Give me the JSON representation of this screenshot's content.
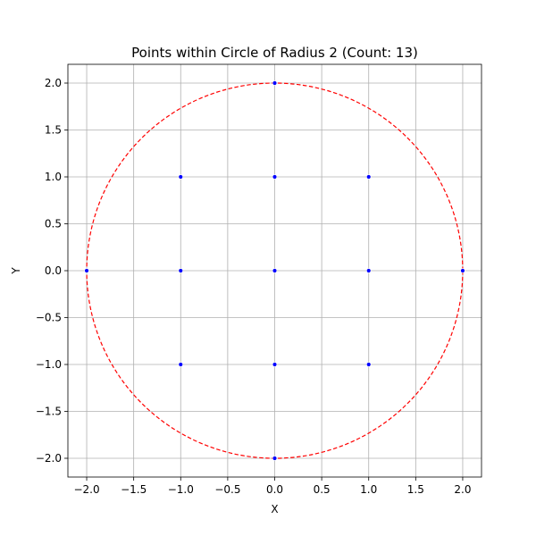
{
  "chart_data": {
    "type": "scatter",
    "title": "Points within Circle of Radius 2 (Count: 13)",
    "xlabel": "X",
    "ylabel": "Y",
    "xlim": [
      -2.2,
      2.2
    ],
    "ylim": [
      -2.2,
      2.2
    ],
    "xticks": [
      -2.0,
      -1.5,
      -1.0,
      -0.5,
      0.0,
      0.5,
      1.0,
      1.5,
      2.0
    ],
    "yticks": [
      -2.0,
      -1.5,
      -1.0,
      -0.5,
      0.0,
      0.5,
      1.0,
      1.5,
      2.0
    ],
    "xtick_labels": [
      "−2.0",
      "−1.5",
      "−1.0",
      "−0.5",
      "0.0",
      "0.5",
      "1.0",
      "1.5",
      "2.0"
    ],
    "ytick_labels": [
      "−2.0",
      "−1.5",
      "−1.0",
      "−0.5",
      "0.0",
      "0.5",
      "1.0",
      "1.5",
      "2.0"
    ],
    "grid": true,
    "points": [
      {
        "x": -2,
        "y": 0
      },
      {
        "x": -1,
        "y": -1
      },
      {
        "x": -1,
        "y": 0
      },
      {
        "x": -1,
        "y": 1
      },
      {
        "x": 0,
        "y": -2
      },
      {
        "x": 0,
        "y": -1
      },
      {
        "x": 0,
        "y": 0
      },
      {
        "x": 0,
        "y": 1
      },
      {
        "x": 0,
        "y": 2
      },
      {
        "x": 1,
        "y": -1
      },
      {
        "x": 1,
        "y": 0
      },
      {
        "x": 1,
        "y": 1
      },
      {
        "x": 2,
        "y": 0
      }
    ],
    "circle": {
      "cx": 0,
      "cy": 0,
      "r": 2,
      "style": "dashed"
    },
    "colors": {
      "points": "#0000ff",
      "circle": "#ff0000",
      "grid": "#b0b0b0"
    }
  }
}
